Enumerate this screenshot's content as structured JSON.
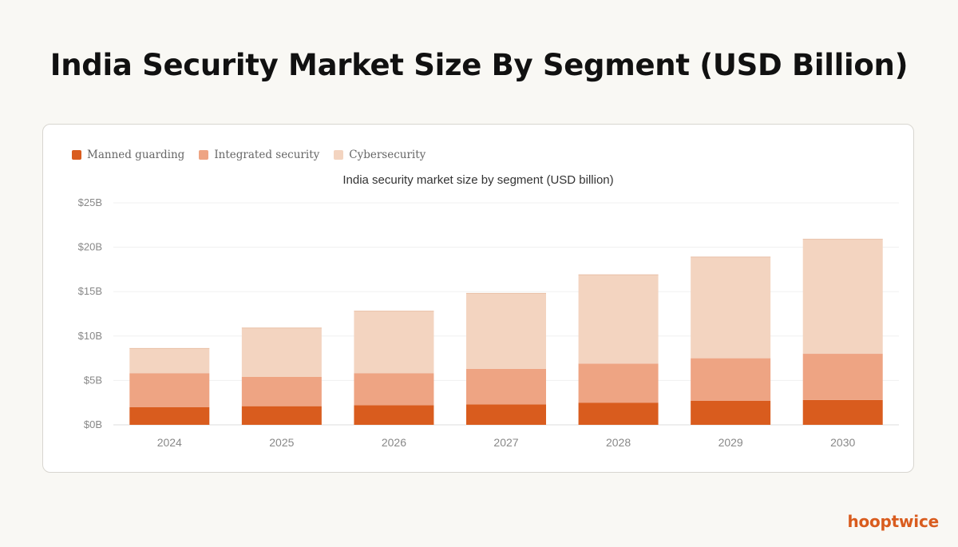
{
  "page": {
    "title": "India Security Market Size By Segment (USD Billion)",
    "brand": "hooptwice"
  },
  "chart_data": {
    "type": "bar",
    "stacked": true,
    "title": "India security market size by segment (USD billion)",
    "xlabel": "",
    "ylabel": "",
    "categories": [
      "2024",
      "2025",
      "2026",
      "2027",
      "2028",
      "2029",
      "2030"
    ],
    "series": [
      {
        "name": "Manned guarding",
        "color": "#d95c1e",
        "values": [
          2.0,
          2.1,
          2.2,
          2.3,
          2.5,
          2.7,
          2.8
        ]
      },
      {
        "name": "Integrated security",
        "color": "#eea483",
        "values": [
          3.8,
          3.3,
          3.6,
          4.0,
          4.4,
          4.8,
          5.2
        ]
      },
      {
        "name": "Cybersecurity",
        "color": "#f3d4c0",
        "values": [
          2.8,
          5.5,
          7.0,
          8.5,
          10.0,
          11.4,
          12.9
        ]
      }
    ],
    "ylim": [
      0,
      25
    ],
    "yticks": [
      0,
      5,
      10,
      15,
      20,
      25
    ],
    "ytick_labels": [
      "$0B",
      "$5B",
      "$10B",
      "$15B",
      "$20B",
      "$25B"
    ],
    "grid": true,
    "legend_position": "top-left"
  }
}
